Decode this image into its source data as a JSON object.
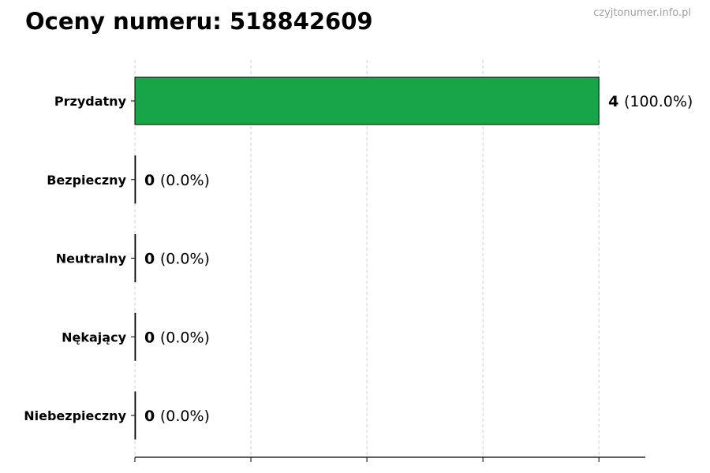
{
  "chart_data": {
    "type": "bar",
    "orientation": "horizontal",
    "title": "Oceny numeru: 518842609",
    "watermark": "czyjtonumer.info.pl",
    "categories": [
      "Przydatny",
      "Bezpieczny",
      "Neutralny",
      "Nękający",
      "Niebezpieczny"
    ],
    "values": [
      4,
      0,
      0,
      0,
      0
    ],
    "value_labels": [
      "4",
      "0",
      "0",
      "0",
      "0"
    ],
    "percent_labels": [
      "(100.0%)",
      "(0.0%)",
      "(0.0%)",
      "(0.0%)",
      "(0.0%)"
    ],
    "xlim": [
      0,
      4.4
    ],
    "xticks": [
      0,
      1,
      2,
      3,
      4
    ],
    "xtick_labels_visible": false,
    "grid": "x, dashed",
    "bar_color": "#17a548",
    "xlabel": "",
    "ylabel": ""
  }
}
